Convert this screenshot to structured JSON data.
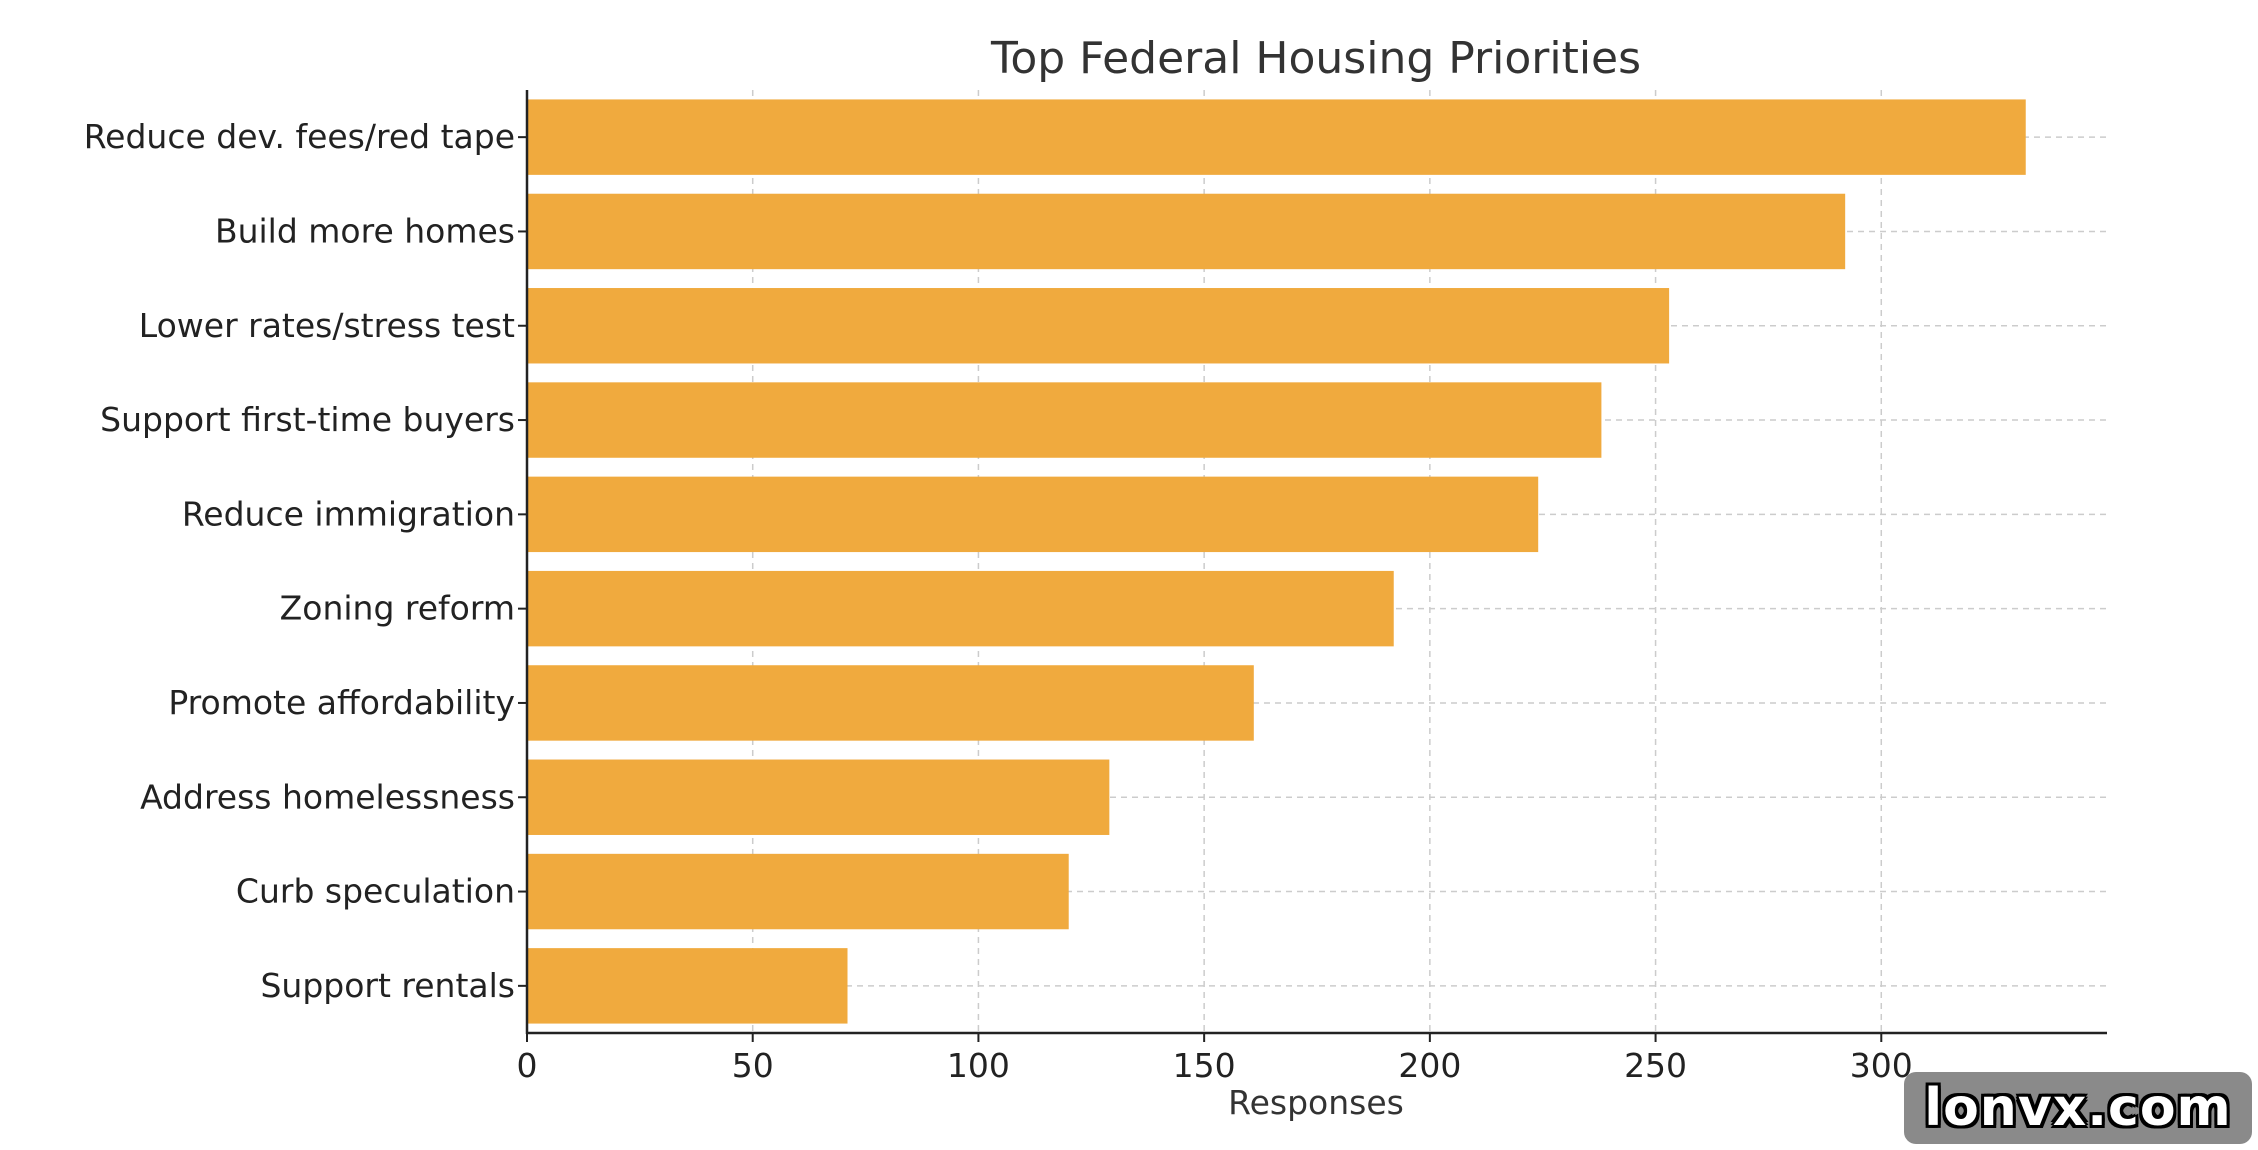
{
  "chart_data": {
    "type": "bar",
    "orientation": "horizontal",
    "title": "Top Federal Housing Priorities",
    "xlabel": "Responses",
    "ylabel": "",
    "xlim": [
      0,
      350
    ],
    "xticks": [
      0,
      50,
      100,
      150,
      200,
      250,
      300
    ],
    "grid": true,
    "bar_color": "#f0aa3e",
    "categories": [
      "Reduce dev. fees/red tape",
      "Build more homes",
      "Lower rates/stress test",
      "Support first-time buyers",
      "Reduce immigration",
      "Zoning reform",
      "Promote affordability",
      "Address homelessness",
      "Curb speculation",
      "Support rentals"
    ],
    "values": [
      332,
      292,
      253,
      238,
      224,
      192,
      161,
      129,
      120,
      71
    ]
  },
  "watermark": {
    "text": "lonvx.com"
  }
}
